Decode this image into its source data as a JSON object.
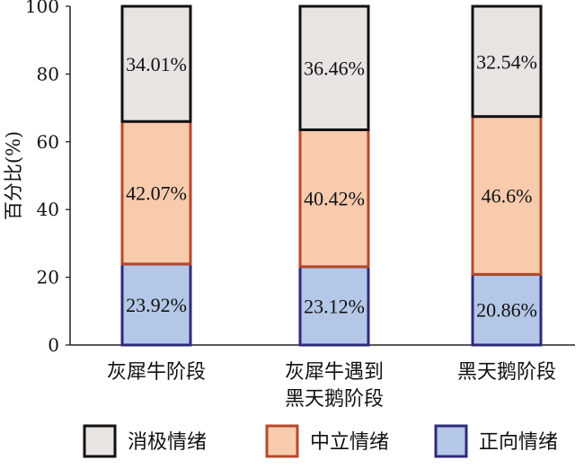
{
  "chart_data": {
    "type": "bar",
    "stacked": true,
    "ylabel": "百分比(%)",
    "ylim": [
      0,
      100
    ],
    "yticks": [
      0,
      20,
      40,
      60,
      80,
      100
    ],
    "categories": [
      [
        "灰犀牛阶段"
      ],
      [
        "灰犀牛遇到",
        "黑天鹅阶段"
      ],
      [
        "黑天鹅阶段"
      ]
    ],
    "series": [
      {
        "name": "正向情绪",
        "values": [
          23.92,
          23.12,
          20.86
        ],
        "labels": [
          "23.92%",
          "23.12%",
          "20.86%"
        ],
        "fill": "#b4c7e7",
        "stroke": "#2e2a78"
      },
      {
        "name": "中立情绪",
        "values": [
          42.07,
          40.42,
          46.6
        ],
        "labels": [
          "42.07%",
          "40.42%",
          "46.6%"
        ],
        "fill": "#f8cbad",
        "stroke": "#b5492a"
      },
      {
        "name": "消极情绪",
        "values": [
          34.01,
          36.46,
          32.54
        ],
        "labels": [
          "34.01%",
          "36.46%",
          "32.54%"
        ],
        "fill": "#e8e4e2",
        "stroke": "#111111"
      }
    ],
    "legend": {
      "position": "bottom",
      "order": [
        "消极情绪",
        "中立情绪",
        "正向情绪"
      ]
    },
    "grid": false
  }
}
